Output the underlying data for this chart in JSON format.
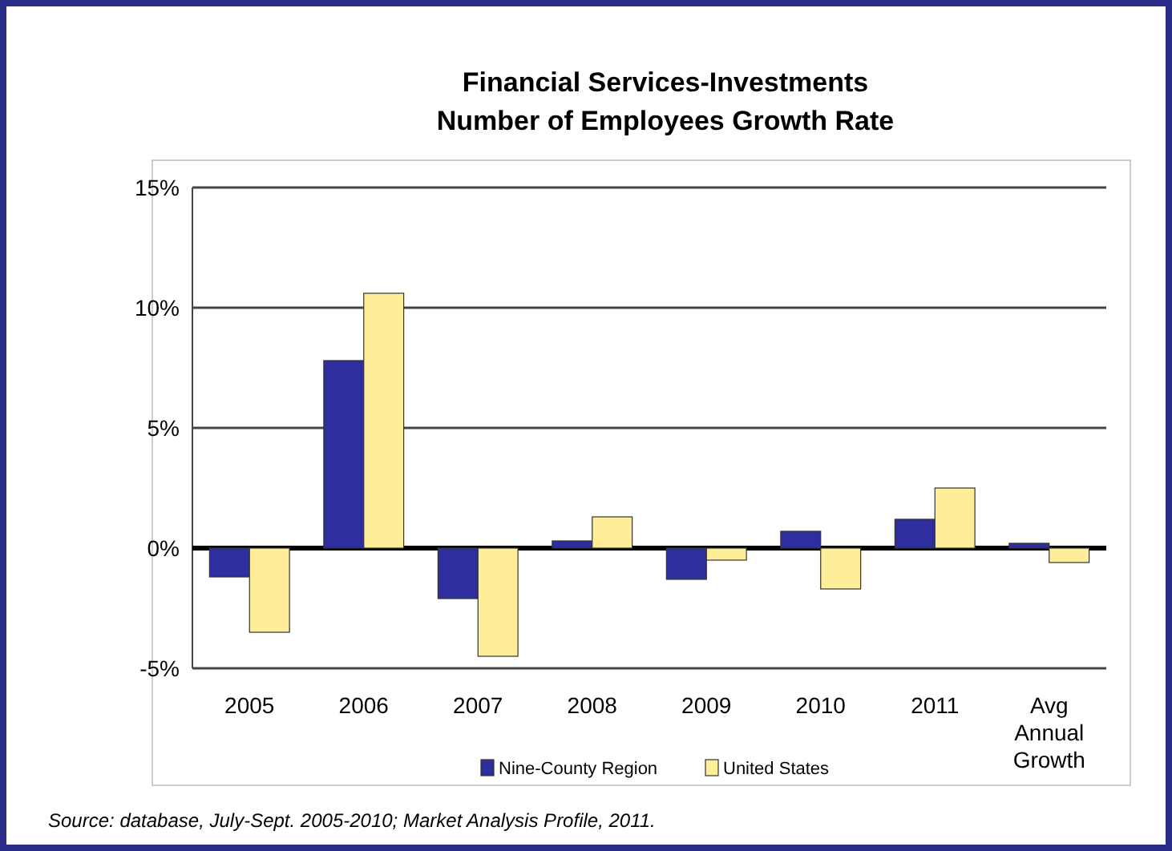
{
  "chart_data": {
    "type": "bar",
    "title": "Financial Services-Investments\nNumber of Employees Growth Rate",
    "categories": [
      "2005",
      "2006",
      "2007",
      "2008",
      "2009",
      "2010",
      "2011",
      "Avg Annual Growth"
    ],
    "series": [
      {
        "name": "Nine-County Region",
        "color": "#2e2e9e",
        "values": [
          -1.2,
          7.8,
          -2.1,
          0.3,
          -1.3,
          0.7,
          1.2,
          0.2
        ]
      },
      {
        "name": "United States",
        "color": "#ffee99",
        "values": [
          -3.5,
          10.6,
          -4.5,
          1.3,
          -0.5,
          -1.7,
          2.5,
          -0.6
        ]
      }
    ],
    "ylim": [
      -5,
      15
    ],
    "yticks": [
      {
        "value": -5,
        "label": "-5%"
      },
      {
        "value": 0,
        "label": "0%"
      },
      {
        "value": 5,
        "label": "5%"
      },
      {
        "value": 10,
        "label": "10%"
      },
      {
        "value": 15,
        "label": "15%"
      }
    ],
    "grid": "y",
    "legend": "bottom",
    "annotations": [
      "Source: database, July-Sept. 2005-2010; Market Analysis Profile, 2011."
    ]
  }
}
